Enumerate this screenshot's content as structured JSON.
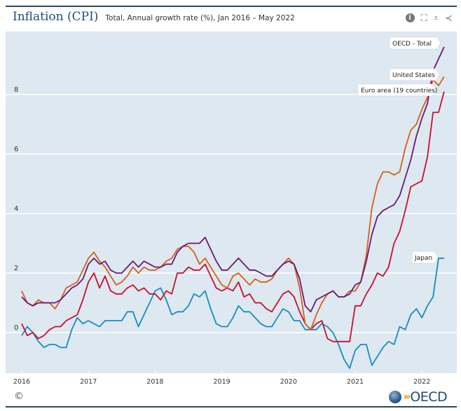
{
  "header": {
    "title": "Inflation (CPI)",
    "subtitle": "Total, Annual growth rate (%), Jan 2016 – May 2022"
  },
  "tools": [
    {
      "icon": "info-icon"
    },
    {
      "icon": "fullscreen-icon"
    },
    {
      "icon": "download-icon"
    },
    {
      "icon": "share-icon"
    }
  ],
  "footer": {
    "copyright": "©",
    "logo": "OECD"
  },
  "chart_data": {
    "type": "line",
    "title": "Inflation (CPI)",
    "subtitle": "Total, Annual growth rate (%), Jan 2016 – May 2022",
    "x_start": "2016-01",
    "x_end": "2022-05",
    "x_frequency": "monthly",
    "x_ticks": [
      "2016",
      "2017",
      "2018",
      "2019",
      "2020",
      "2021",
      "2022"
    ],
    "y_ticks": [
      0,
      2,
      4,
      6,
      8
    ],
    "ylim": [
      -1.3,
      9.9
    ],
    "grid": "horizontal",
    "legend": "inline labels at line ends",
    "series": [
      {
        "name": "OECD - Total",
        "color": "#6a1b6f",
        "values": [
          1.2,
          1.0,
          0.9,
          1.0,
          1.0,
          1.0,
          1.0,
          1.1,
          1.3,
          1.5,
          1.6,
          1.8,
          2.3,
          2.5,
          2.3,
          2.4,
          2.1,
          2.0,
          2.0,
          2.2,
          2.4,
          2.2,
          2.4,
          2.3,
          2.2,
          2.2,
          2.3,
          2.3,
          2.7,
          2.9,
          3.0,
          3.0,
          3.0,
          3.2,
          2.8,
          2.4,
          2.1,
          2.1,
          2.3,
          2.5,
          2.3,
          2.1,
          2.1,
          2.0,
          1.9,
          1.9,
          2.1,
          2.3,
          2.4,
          2.3,
          1.8,
          0.9,
          0.7,
          1.1,
          1.2,
          1.3,
          1.4,
          1.2,
          1.2,
          1.3,
          1.6,
          1.7,
          2.4,
          3.3,
          3.9,
          4.1,
          4.2,
          4.3,
          4.6,
          5.2,
          5.8,
          6.6,
          7.2,
          7.7,
          8.8,
          9.2,
          9.6
        ]
      },
      {
        "name": "United States",
        "color": "#d4601e",
        "values": [
          1.4,
          1.0,
          0.9,
          1.1,
          1.0,
          1.0,
          0.8,
          1.1,
          1.5,
          1.6,
          1.7,
          2.1,
          2.5,
          2.7,
          2.4,
          2.2,
          1.9,
          1.6,
          1.7,
          1.9,
          2.2,
          2.0,
          2.2,
          2.1,
          2.1,
          2.2,
          2.4,
          2.5,
          2.8,
          2.9,
          2.9,
          2.7,
          2.3,
          2.5,
          2.2,
          1.9,
          1.6,
          1.5,
          1.9,
          2.0,
          1.8,
          1.6,
          1.8,
          1.7,
          1.7,
          1.8,
          2.1,
          2.3,
          2.5,
          2.3,
          1.5,
          0.3,
          0.1,
          0.6,
          1.0,
          1.3,
          1.4,
          1.2,
          1.2,
          1.4,
          1.4,
          1.7,
          2.6,
          4.2,
          5.0,
          5.4,
          5.4,
          5.3,
          5.4,
          6.2,
          6.8,
          7.0,
          7.5,
          7.9,
          8.5,
          8.3,
          8.6
        ]
      },
      {
        "name": "Euro area (19 countries)",
        "color": "#c8102e",
        "values": [
          0.3,
          -0.1,
          0.0,
          -0.2,
          -0.1,
          0.1,
          0.2,
          0.2,
          0.4,
          0.5,
          0.6,
          1.1,
          1.7,
          2.0,
          1.5,
          1.9,
          1.4,
          1.3,
          1.3,
          1.5,
          1.6,
          1.4,
          1.5,
          1.3,
          1.3,
          1.1,
          1.4,
          1.3,
          2.0,
          2.0,
          2.2,
          2.1,
          2.1,
          2.3,
          1.9,
          1.5,
          1.4,
          1.5,
          1.4,
          1.7,
          1.2,
          1.3,
          1.0,
          1.0,
          0.8,
          0.7,
          1.0,
          1.3,
          1.4,
          1.2,
          0.7,
          0.3,
          0.1,
          0.3,
          0.4,
          -0.2,
          -0.3,
          -0.3,
          -0.3,
          -0.3,
          0.9,
          0.9,
          1.3,
          1.6,
          2.0,
          1.9,
          2.2,
          3.0,
          3.4,
          4.1,
          4.9,
          5.0,
          5.1,
          5.9,
          7.4,
          7.4,
          8.1
        ]
      },
      {
        "name": "Japan",
        "color": "#1a8cc0",
        "values": [
          -0.1,
          0.2,
          0.0,
          -0.3,
          -0.5,
          -0.4,
          -0.4,
          -0.5,
          -0.5,
          0.1,
          0.5,
          0.3,
          0.4,
          0.3,
          0.2,
          0.4,
          0.4,
          0.4,
          0.4,
          0.7,
          0.7,
          0.2,
          0.6,
          1.0,
          1.4,
          1.5,
          1.1,
          0.6,
          0.7,
          0.7,
          0.9,
          1.3,
          1.2,
          1.4,
          0.8,
          0.3,
          0.2,
          0.2,
          0.5,
          0.9,
          0.7,
          0.7,
          0.5,
          0.3,
          0.2,
          0.2,
          0.5,
          0.8,
          0.7,
          0.4,
          0.4,
          0.1,
          0.1,
          0.1,
          0.3,
          0.2,
          0.0,
          -0.4,
          -0.9,
          -1.2,
          -0.6,
          -0.4,
          -0.4,
          -1.1,
          -0.8,
          -0.5,
          -0.3,
          -0.4,
          0.2,
          0.1,
          0.6,
          0.8,
          0.5,
          0.9,
          1.2,
          2.5,
          2.5
        ]
      }
    ]
  }
}
